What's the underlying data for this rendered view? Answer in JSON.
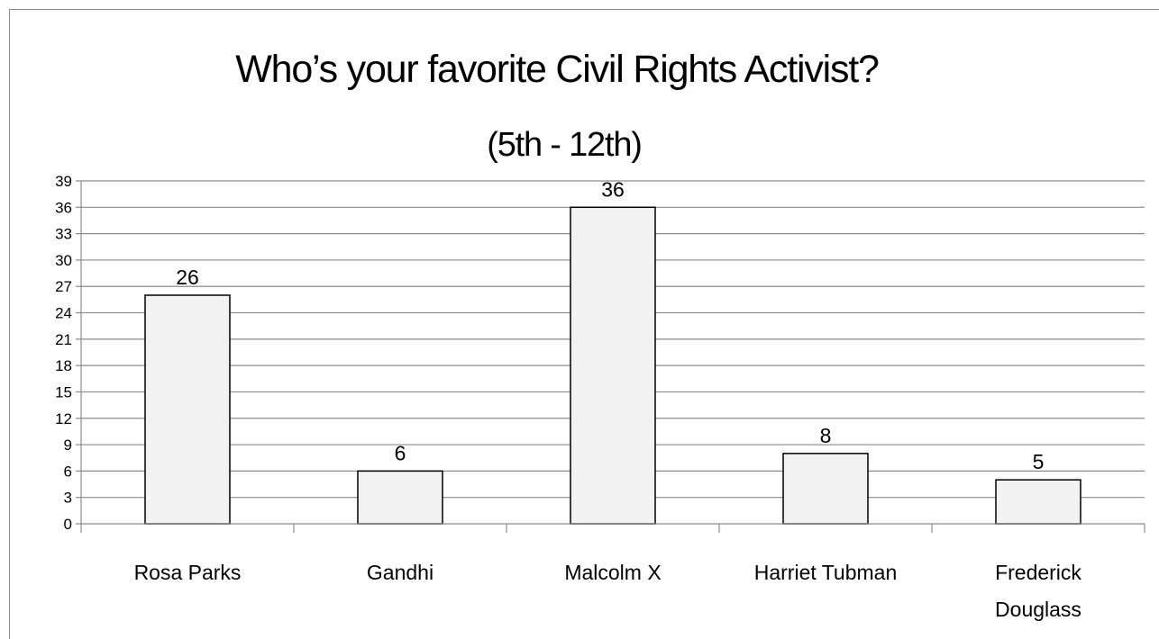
{
  "chart_data": {
    "type": "bar",
    "title": "Who’s your favorite Civil Rights Activist?",
    "subtitle": "(5th - 12th)",
    "categories": [
      "Rosa Parks",
      "Gandhi",
      "Malcolm X",
      "Harriet Tubman",
      "Frederick Douglass"
    ],
    "category_lines": [
      [
        "Rosa Parks"
      ],
      [
        "Gandhi"
      ],
      [
        "Malcolm X"
      ],
      [
        "Harriet Tubman"
      ],
      [
        "Frederick",
        "Douglass"
      ]
    ],
    "values": [
      26,
      6,
      36,
      8,
      5
    ],
    "data_labels": [
      "26",
      "6",
      "36",
      "8",
      "5"
    ],
    "xlabel": "",
    "ylabel": "",
    "ylim": [
      0,
      39
    ],
    "yticks": [
      0,
      3,
      6,
      9,
      12,
      15,
      18,
      21,
      24,
      27,
      30,
      33,
      36,
      39
    ],
    "grid": true,
    "legend": "none",
    "colors": {
      "bar_fill": "#f2f2f2",
      "bar_stroke": "#000000",
      "gridline": "#8c8c8c",
      "axis": "#8c8c8c",
      "text": "#000000"
    }
  }
}
